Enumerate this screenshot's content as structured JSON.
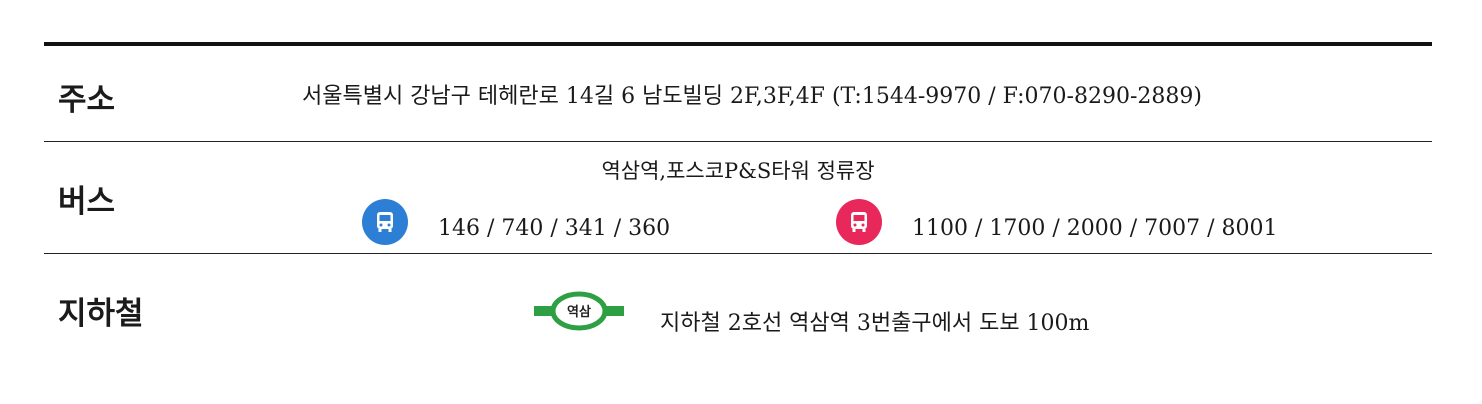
{
  "address": {
    "label": "주소",
    "text": "서울특별시 강남구 테헤란로 14길 6 남도빌딩 2F,3F,4F (T:1544-9970 / F:070-8290-2889)"
  },
  "bus": {
    "label": "버스",
    "stop": "역삼역,포스코P&S타워 정류장",
    "blue_routes": "146 / 740 / 341 / 360",
    "red_routes": "1100 / 1700 / 2000 / 7007 / 8001",
    "colors": {
      "blue": "#2d7fd6",
      "red": "#e8285a"
    },
    "icons": [
      "bus-icon",
      "bus-icon"
    ]
  },
  "subway": {
    "label": "지하철",
    "station_badge": "역삼",
    "directions": "지하철 2호선 역삼역 3번출구에서 도보 100m",
    "line_color": "#2ea043",
    "icon": "subway-station-icon"
  }
}
